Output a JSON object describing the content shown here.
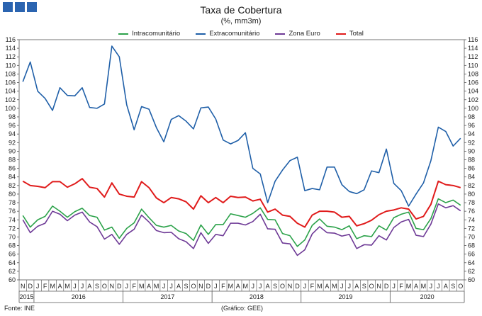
{
  "header": {
    "title": "Taxa de Cobertura",
    "subtitle": "(%, mm3m)"
  },
  "footer": {
    "source": "Fonte: INE",
    "credit": "(Gráfico: GEE)"
  },
  "colors": {
    "logo": "#2b64b0",
    "Intracomunitário": "#2ca24a",
    "Extracomunitário": "#1f5fa8",
    "Zona Euro": "#6e3a96",
    "Total": "#e01b1b"
  },
  "chart_data": {
    "type": "line",
    "title": "Taxa de Cobertura",
    "subtitle": "(%, mm3m)",
    "ylim": [
      60,
      116
    ],
    "yticks": [
      60,
      62,
      64,
      66,
      68,
      70,
      72,
      74,
      76,
      78,
      80,
      82,
      84,
      86,
      88,
      90,
      92,
      94,
      96,
      98,
      100,
      102,
      104,
      106,
      108,
      110,
      112,
      114,
      116
    ],
    "month_labels": [
      "N",
      "D",
      "J",
      "F",
      "M",
      "A",
      "M",
      "J",
      "J",
      "A",
      "S",
      "O",
      "N",
      "D",
      "J",
      "F",
      "M",
      "A",
      "M",
      "J",
      "J",
      "A",
      "S",
      "O",
      "N",
      "D",
      "J",
      "F",
      "M",
      "A",
      "M",
      "J",
      "J",
      "A",
      "S",
      "O",
      "N",
      "D",
      "J",
      "F",
      "M",
      "A",
      "M",
      "J",
      "J",
      "A",
      "S",
      "O",
      "N",
      "D",
      "J",
      "F",
      "M",
      "A",
      "M",
      "J",
      "J",
      "A",
      "S",
      "O"
    ],
    "years": [
      {
        "label": "2015",
        "start": 0,
        "end": 2
      },
      {
        "label": "2016",
        "start": 2,
        "end": 14
      },
      {
        "label": "2017",
        "start": 14,
        "end": 26
      },
      {
        "label": "2018",
        "start": 26,
        "end": 38
      },
      {
        "label": "2019",
        "start": 38,
        "end": 50
      },
      {
        "label": "2020",
        "start": 50,
        "end": 60
      }
    ],
    "legend_position": "top",
    "grid": false,
    "series": [
      {
        "name": "Intracomunitário",
        "values": [
          75.0,
          72.3,
          74.0,
          74.8,
          77.2,
          76.0,
          74.6,
          75.9,
          76.7,
          75.0,
          74.6,
          71.6,
          72.3,
          69.7,
          72.0,
          73.3,
          76.5,
          74.5,
          72.7,
          72.3,
          72.7,
          71.4,
          70.8,
          69.2,
          72.8,
          70.6,
          72.9,
          72.9,
          75.4,
          75.0,
          74.6,
          75.5,
          76.8,
          74.1,
          74.0,
          70.8,
          70.3,
          67.8,
          69.3,
          72.7,
          74.2,
          72.5,
          72.3,
          71.7,
          72.6,
          69.6,
          70.3,
          70.1,
          72.6,
          71.6,
          74.5,
          75.3,
          75.8,
          72.0,
          71.7,
          74.3,
          78.9,
          78.0,
          78.6,
          77.4
        ]
      },
      {
        "name": "Extracomunitário",
        "values": [
          106.2,
          110.8,
          104.0,
          102.3,
          99.5,
          104.8,
          103.0,
          102.9,
          104.8,
          100.2,
          100.0,
          101.0,
          114.5,
          112.0,
          100.8,
          95.0,
          100.4,
          99.8,
          95.5,
          92.2,
          97.4,
          98.3,
          97.0,
          95.2,
          100.1,
          100.3,
          97.5,
          92.6,
          91.7,
          92.5,
          94.3,
          86.0,
          84.7,
          78.0,
          83.0,
          85.6,
          87.8,
          88.6,
          80.8,
          81.3,
          81.0,
          86.3,
          86.3,
          82.2,
          80.6,
          80.1,
          81.0,
          85.4,
          85.0,
          90.5,
          82.5,
          80.8,
          77.2,
          80.0,
          82.6,
          87.8,
          95.6,
          94.6,
          91.2,
          93.0
        ]
      },
      {
        "name": "Zona Euro",
        "values": [
          74.0,
          71.0,
          72.5,
          73.2,
          76.0,
          75.3,
          73.8,
          75.1,
          75.8,
          73.5,
          72.4,
          69.5,
          70.6,
          68.3,
          70.6,
          71.8,
          75.1,
          73.5,
          71.5,
          71.0,
          71.1,
          69.6,
          68.9,
          67.3,
          71.0,
          68.5,
          70.6,
          70.3,
          73.2,
          73.2,
          72.8,
          73.6,
          75.3,
          71.9,
          71.8,
          68.6,
          68.4,
          65.7,
          67.0,
          70.7,
          72.4,
          71.0,
          70.9,
          70.2,
          70.6,
          67.3,
          68.2,
          68.1,
          70.3,
          69.3,
          72.2,
          73.5,
          74.1,
          70.4,
          70.1,
          73.0,
          77.7,
          76.8,
          77.3,
          76.1
        ]
      },
      {
        "name": "Total",
        "values": [
          83.0,
          82.0,
          81.8,
          81.5,
          82.9,
          82.9,
          81.6,
          82.4,
          83.6,
          81.6,
          81.3,
          79.3,
          82.6,
          80.0,
          79.5,
          79.3,
          82.9,
          81.5,
          79.1,
          78.0,
          79.2,
          78.9,
          78.2,
          76.5,
          79.6,
          78.0,
          79.2,
          78.0,
          79.5,
          79.2,
          79.3,
          78.4,
          78.8,
          75.8,
          76.5,
          75.1,
          74.8,
          73.2,
          72.3,
          75.1,
          76.0,
          76.0,
          75.8,
          74.6,
          74.8,
          72.6,
          73.1,
          73.9,
          75.2,
          76.0,
          76.3,
          76.8,
          76.5,
          74.2,
          74.8,
          77.6,
          83.0,
          82.2,
          82.0,
          81.5
        ]
      }
    ]
  }
}
